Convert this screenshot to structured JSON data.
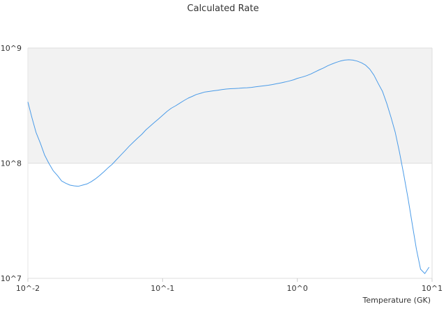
{
  "chart_data": {
    "type": "line",
    "title": "Calculated Rate",
    "xlabel": "Temperature (GK)",
    "ylabel": "",
    "xscale": "log",
    "yscale": "log",
    "xlim": [
      0.01,
      10
    ],
    "ylim": [
      10000000,
      1000000000
    ],
    "x_ticks": [
      {
        "value": 0.01,
        "label": "10^-2"
      },
      {
        "value": 0.1,
        "label": "10^-1"
      },
      {
        "value": 1,
        "label": "10^0"
      },
      {
        "value": 10,
        "label": "10^1"
      }
    ],
    "y_ticks": [
      {
        "value": 10000000,
        "label": "10^7"
      },
      {
        "value": 100000000,
        "label": "10^8"
      },
      {
        "value": 1000000000,
        "label": "10^9"
      }
    ],
    "grid": true,
    "band_colors": [
      "#f2f2f2",
      "#ffffff"
    ],
    "line_color": "#4a9be8",
    "series": [
      {
        "x": [
          0.01,
          0.0107,
          0.0115,
          0.0124,
          0.0133,
          0.0143,
          0.0154,
          0.0166,
          0.0178,
          0.0191,
          0.0205,
          0.0221,
          0.0237,
          0.0255,
          0.0274,
          0.0295,
          0.0317,
          0.034,
          0.0366,
          0.0393,
          0.0423,
          0.0454,
          0.0488,
          0.0525,
          0.0564,
          0.0606,
          0.0652,
          0.07,
          0.0753,
          0.0809,
          0.087,
          0.0935,
          0.1,
          0.108,
          0.116,
          0.125,
          0.134,
          0.144,
          0.155,
          0.166,
          0.178,
          0.192,
          0.206,
          0.222,
          0.238,
          0.256,
          0.275,
          0.296,
          0.318,
          0.342,
          0.367,
          0.395,
          0.424,
          0.456,
          0.49,
          0.527,
          0.567,
          0.609,
          0.655,
          0.704,
          0.757,
          0.813,
          0.874,
          0.94,
          1.0,
          1.09,
          1.17,
          1.26,
          1.35,
          1.45,
          1.56,
          1.68,
          1.8,
          1.94,
          2.08,
          2.24,
          2.41,
          2.59,
          2.78,
          2.99,
          3.21,
          3.45,
          3.71,
          3.99,
          4.29,
          4.61,
          4.96,
          5.33,
          5.73,
          6.16,
          6.62,
          7.11,
          7.65,
          8.22,
          8.84,
          9.5
        ],
        "y": [
          340000000,
          250000000,
          185000000,
          148000000,
          118000000,
          100000000,
          86000000,
          78000000,
          70000000,
          67000000,
          64500000,
          63500000,
          63000000,
          64500000,
          66000000,
          69000000,
          73000000,
          78000000,
          84000000,
          91000000,
          98000000,
          107000000,
          117000000,
          128000000,
          140000000,
          152000000,
          165000000,
          178000000,
          195000000,
          210000000,
          226000000,
          243000000,
          260000000,
          282000000,
          300000000,
          315000000,
          332000000,
          350000000,
          367000000,
          380000000,
          395000000,
          405000000,
          415000000,
          420000000,
          425000000,
          430000000,
          435000000,
          440000000,
          443000000,
          445000000,
          447000000,
          450000000,
          452000000,
          455000000,
          460000000,
          465000000,
          470000000,
          475000000,
          482000000,
          490000000,
          498000000,
          507000000,
          518000000,
          530000000,
          545000000,
          560000000,
          575000000,
          595000000,
          620000000,
          645000000,
          670000000,
          700000000,
          725000000,
          750000000,
          770000000,
          785000000,
          790000000,
          785000000,
          770000000,
          745000000,
          710000000,
          655000000,
          580000000,
          490000000,
          420000000,
          330000000,
          250000000,
          185000000,
          125000000,
          80000000,
          50000000,
          30000000,
          18000000,
          12000000,
          11000000,
          12500000
        ]
      }
    ]
  }
}
